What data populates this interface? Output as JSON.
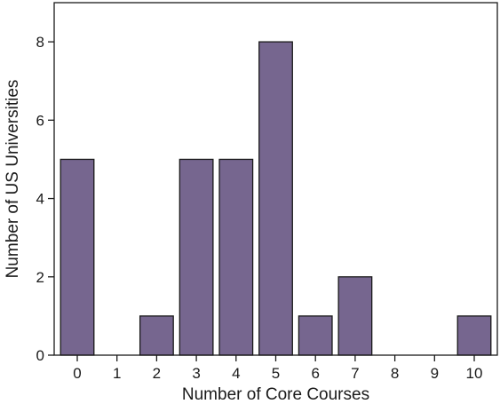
{
  "chart_data": {
    "type": "bar",
    "categories": [
      "0",
      "1",
      "2",
      "3",
      "4",
      "5",
      "6",
      "7",
      "8",
      "9",
      "10"
    ],
    "values": [
      5,
      0,
      1,
      5,
      5,
      8,
      1,
      2,
      0,
      0,
      1
    ],
    "xlabel": "Number of Core Courses",
    "ylabel": "Number of US Universities",
    "ylim": [
      0,
      9
    ],
    "yticks": [
      0,
      2,
      4,
      6,
      8
    ],
    "grid": false,
    "bar_color": "#76668f"
  }
}
